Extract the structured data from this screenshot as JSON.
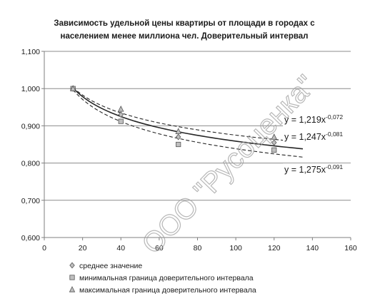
{
  "chart_data": {
    "type": "scatter",
    "title_lines": [
      "Зависимость удельной цены квартиры от площади в городах с",
      "населением менее миллиона чел. Доверительный интервал"
    ],
    "xlim": [
      0,
      160
    ],
    "ylim": [
      0.6,
      1.1
    ],
    "x_ticks": [
      "0",
      "20",
      "40",
      "60",
      "80",
      "100",
      "120",
      "140",
      "160"
    ],
    "y_ticks": [
      "0,600",
      "0,700",
      "0,800",
      "0,900",
      "1,000",
      "1,100"
    ],
    "grid": "horizontal",
    "legend_position": "bottom-left",
    "series": [
      {
        "name": "среднее значение",
        "marker": "diamond",
        "points": [
          [
            15,
            1.0
          ],
          [
            40,
            0.93
          ],
          [
            70,
            0.87
          ],
          [
            120,
            0.855
          ]
        ]
      },
      {
        "name": "минимальная граница доверительного интервала",
        "marker": "square",
        "points": [
          [
            15,
            1.0
          ],
          [
            40,
            0.912
          ],
          [
            70,
            0.85
          ],
          [
            120,
            0.835
          ]
        ]
      },
      {
        "name": "максимальная граница доверительного интервала",
        "marker": "triangle",
        "points": [
          [
            15,
            1.0
          ],
          [
            40,
            0.945
          ],
          [
            70,
            0.885
          ],
          [
            120,
            0.87
          ]
        ]
      }
    ],
    "trendlines": [
      {
        "equation": "y = 1,219x",
        "exponent": "-0,072",
        "a": 1.219,
        "b": -0.072,
        "style": "dashed"
      },
      {
        "equation": "y = 1,247x",
        "exponent": "-0,081",
        "a": 1.247,
        "b": -0.081,
        "style": "solid"
      },
      {
        "equation": "y = 1,275x",
        "exponent": "-0,091",
        "a": 1.275,
        "b": -0.091,
        "style": "dashed"
      }
    ],
    "trend_x_range": [
      15,
      135
    ],
    "watermark": "ООО \"Русоценка\"",
    "colors": {
      "axis": "#7f7f7f",
      "grid": "#8c8c8c",
      "series": "#262626",
      "marker_fill": "#bfbfbf",
      "watermark": "#a0a0a0"
    }
  }
}
